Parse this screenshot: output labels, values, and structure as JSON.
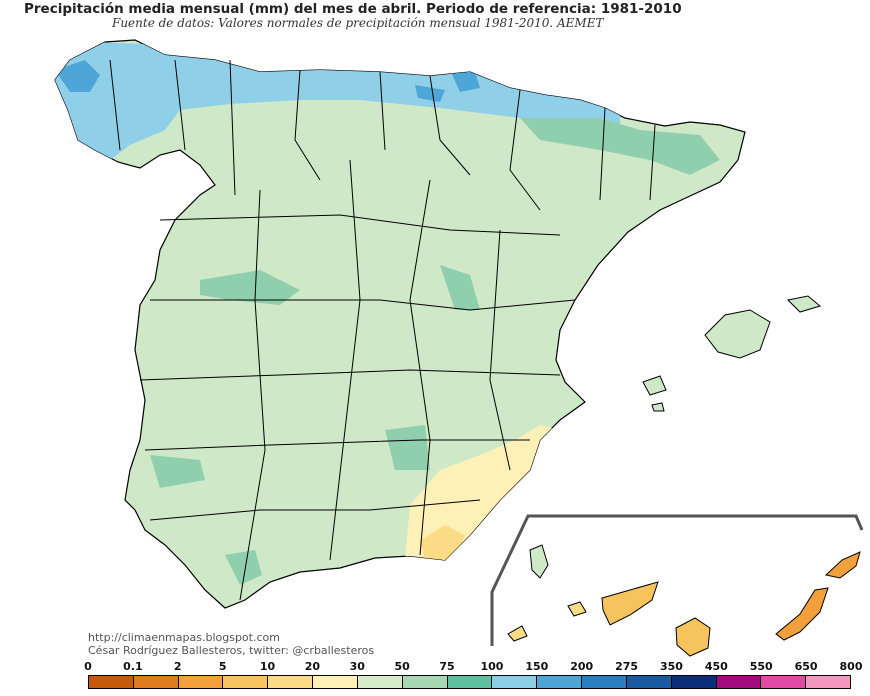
{
  "header": {
    "title": "Precipitación media mensual (mm) del mes de abril. Periodo de referencia: 1981-2010",
    "subtitle": "Fuente de datos: Valores normales de precipitación mensual 1981-2010. AEMET"
  },
  "credits": {
    "blog": "http://climaenmapas.blogspot.com",
    "author": "César Rodríguez Ballesteros, twitter: @crballesteros"
  },
  "legend": {
    "ticks": [
      "0",
      "0.1",
      "2",
      "5",
      "10",
      "20",
      "30",
      "50",
      "75",
      "100",
      "150",
      "200",
      "275",
      "350",
      "450",
      "550",
      "650",
      "800"
    ],
    "colors": [
      "#c8590a",
      "#e07a1f",
      "#f2a03c",
      "#f7c35d",
      "#fbdc86",
      "#fdf1b8",
      "#d6ecc9",
      "#a8d8b2",
      "#5fbf9f",
      "#8ccfe4",
      "#4ea6d6",
      "#2a7fc0",
      "#1a5aa0",
      "#0c2e78",
      "#a30a7d",
      "#e04aa3",
      "#f598c0"
    ]
  },
  "map_colors": {
    "land_base": "#cfe8c8",
    "humid_north": "#8fd0e8",
    "very_humid": "#4ea6d6",
    "wetter_green": "#8fcfad",
    "dry_southeast": "#fdf1b8",
    "driest": "#fbdc86"
  }
}
